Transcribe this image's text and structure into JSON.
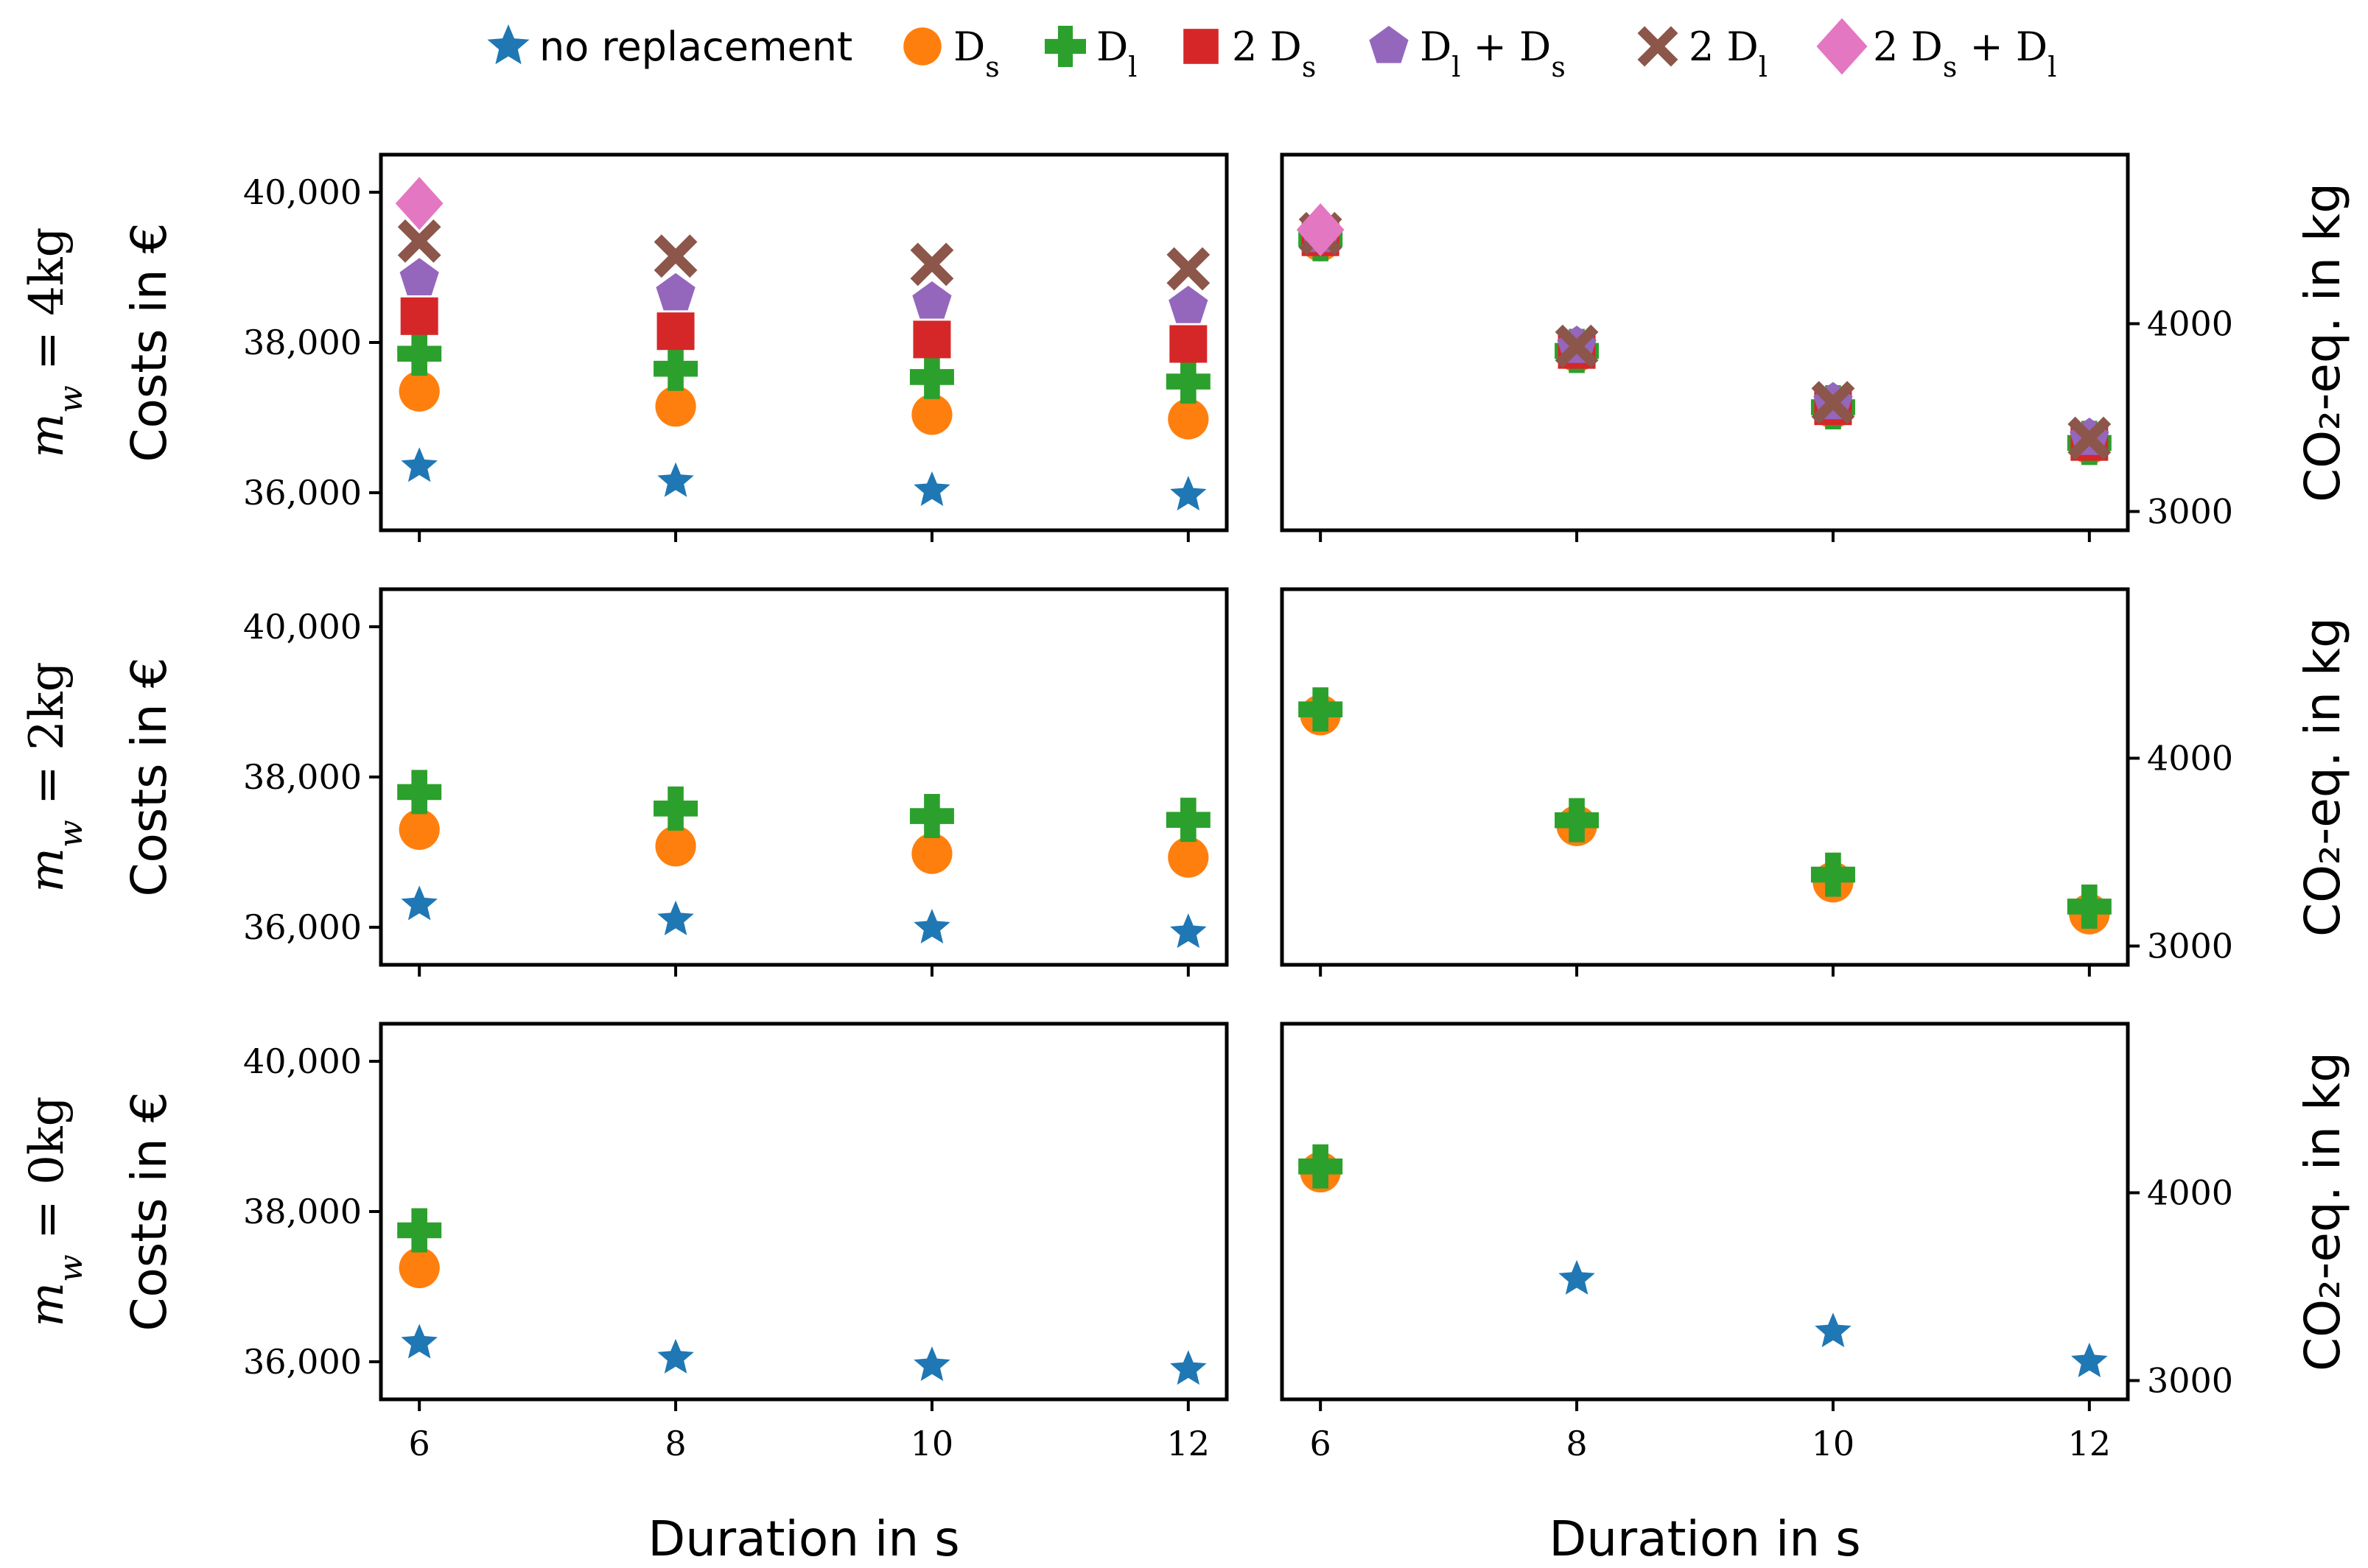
{
  "chart_data": {
    "type": "scatter",
    "x": [
      6,
      8,
      10,
      12
    ],
    "xlabel": "Duration in s",
    "xticks": [
      "6",
      "8",
      "10",
      "12"
    ],
    "legend": {
      "placement": "top-center",
      "entries": [
        {
          "key": "none",
          "label": "no replacement",
          "marker": "star",
          "color": "#1f77b4"
        },
        {
          "key": "ds",
          "label": "D_s",
          "marker": "circle",
          "color": "#ff7f0e"
        },
        {
          "key": "dl",
          "label": "D_l",
          "marker": "plus",
          "color": "#2ca02c"
        },
        {
          "key": "2ds",
          "label": "2 D_s",
          "marker": "square",
          "color": "#d62728"
        },
        {
          "key": "dlds",
          "label": "D_l + D_s",
          "marker": "pentagon",
          "color": "#9467bd"
        },
        {
          "key": "2dl",
          "label": "2 D_l",
          "marker": "x",
          "color": "#8c564b"
        },
        {
          "key": "2dsdl",
          "label": "2 D_s + D_l",
          "marker": "diamond",
          "color": "#e377c2"
        }
      ]
    },
    "rows": [
      {
        "row_label": "m_w = 4kg",
        "cost": {
          "ylabel": "Costs in €",
          "ylim": [
            35500,
            40500
          ],
          "yticks": [
            36000,
            38000,
            40000
          ],
          "ytick_labels": [
            "36,000",
            "38,000",
            "40,000"
          ],
          "series": [
            {
              "key": "none",
              "values": [
                36350,
                36150,
                36030,
                35970
              ]
            },
            {
              "key": "ds",
              "values": [
                37350,
                37150,
                37040,
                36980
              ]
            },
            {
              "key": "dl",
              "values": [
                37850,
                37650,
                37540,
                37480
              ]
            },
            {
              "key": "2ds",
              "values": [
                38350,
                38150,
                38040,
                37980
              ]
            },
            {
              "key": "dlds",
              "values": [
                38850,
                38650,
                38540,
                38480
              ]
            },
            {
              "key": "2dl",
              "values": [
                39350,
                39150,
                39040,
                38980
              ]
            },
            {
              "key": "2dsdl",
              "values": [
                39850,
                null,
                null,
                null
              ]
            }
          ]
        },
        "co2": {
          "ylabel": "CO₂-eq. in kg",
          "ylim": [
            2900,
            4900
          ],
          "yticks": [
            3000,
            4000
          ],
          "ytick_labels": [
            "3000",
            "4000"
          ],
          "series": [
            {
              "key": "none",
              "values": [
                4440,
                3850,
                3550,
                3360
              ]
            },
            {
              "key": "ds",
              "values": [
                4440,
                3850,
                3550,
                3360
              ]
            },
            {
              "key": "dl",
              "values": [
                4450,
                3855,
                3555,
                3365
              ]
            },
            {
              "key": "2ds",
              "values": [
                4460,
                3860,
                3560,
                3370
              ]
            },
            {
              "key": "dlds",
              "values": [
                4470,
                3880,
                3580,
                3390
              ]
            },
            {
              "key": "2dl",
              "values": [
                4480,
                3880,
                3580,
                3390
              ]
            },
            {
              "key": "2dsdl",
              "values": [
                4500,
                null,
                null,
                null
              ]
            }
          ]
        }
      },
      {
        "row_label": "m_w = 2kg",
        "cost": {
          "ylabel": "Costs in €",
          "ylim": [
            35500,
            40500
          ],
          "yticks": [
            36000,
            38000,
            40000
          ],
          "ytick_labels": [
            "36,000",
            "38,000",
            "40,000"
          ],
          "series": [
            {
              "key": "none",
              "values": [
                36300,
                36100,
                35990,
                35930
              ]
            },
            {
              "key": "ds",
              "values": [
                37300,
                37080,
                36980,
                36930
              ]
            },
            {
              "key": "dl",
              "values": [
                37800,
                37580,
                37480,
                37430
              ]
            }
          ]
        },
        "co2": {
          "ylabel": "CO₂-eq. in kg",
          "ylim": [
            2900,
            4900
          ],
          "yticks": [
            3000,
            4000
          ],
          "ytick_labels": [
            "3000",
            "4000"
          ],
          "series": [
            {
              "key": "none",
              "values": [
                4230,
                3640,
                3340,
                3170
              ]
            },
            {
              "key": "ds",
              "values": [
                4230,
                3640,
                3340,
                3170
              ]
            },
            {
              "key": "dl",
              "values": [
                4260,
                3670,
                3380,
                3210
              ]
            }
          ]
        }
      },
      {
        "row_label": "m_w = 0kg",
        "cost": {
          "ylabel": "Costs in €",
          "ylim": [
            35500,
            40500
          ],
          "yticks": [
            36000,
            38000,
            40000
          ],
          "ytick_labels": [
            "36,000",
            "38,000",
            "40,000"
          ],
          "series": [
            {
              "key": "none",
              "values": [
                36250,
                36050,
                35950,
                35900
              ]
            },
            {
              "key": "ds",
              "values": [
                37250,
                null,
                null,
                null
              ]
            },
            {
              "key": "dl",
              "values": [
                37750,
                null,
                null,
                null
              ]
            }
          ]
        },
        "co2": {
          "ylabel": "CO₂-eq. in kg",
          "ylim": [
            2900,
            4900
          ],
          "yticks": [
            3000,
            4000
          ],
          "ytick_labels": [
            "3000",
            "4000"
          ],
          "series": [
            {
              "key": "none",
              "values": [
                4100,
                3540,
                3260,
                3100
              ]
            },
            {
              "key": "ds",
              "values": [
                4110,
                null,
                null,
                null
              ]
            },
            {
              "key": "dl",
              "values": [
                4140,
                null,
                null,
                null
              ]
            }
          ]
        }
      }
    ]
  }
}
